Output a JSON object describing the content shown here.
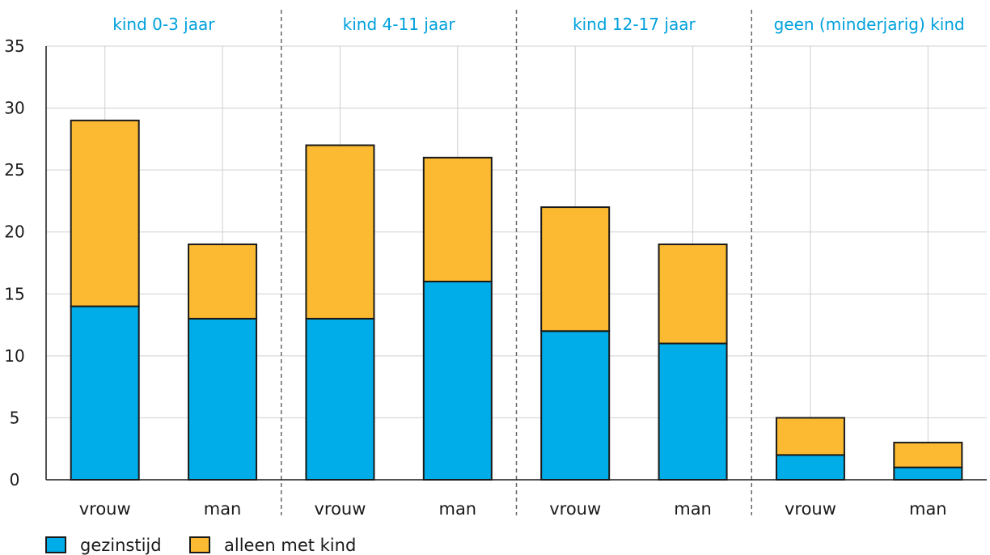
{
  "chart_data": {
    "type": "bar",
    "stacked": true,
    "groups": [
      "kind 0-3 jaar",
      "kind 4-11 jaar",
      "kind 12-17 jaar",
      "geen (minderjarig) kind"
    ],
    "categories": [
      "vrouw",
      "man",
      "vrouw",
      "man",
      "vrouw",
      "man",
      "vrouw",
      "man"
    ],
    "series": [
      {
        "name": "gezinstijd",
        "color": "#00ade8",
        "values": [
          14,
          13,
          13,
          16,
          12,
          11,
          2,
          1
        ]
      },
      {
        "name": "alleen met kind",
        "color": "#fbba31",
        "values": [
          15,
          6,
          14,
          10,
          10,
          8,
          3,
          2
        ]
      }
    ],
    "ylim": [
      0,
      35
    ],
    "yticks": [
      0,
      5,
      10,
      15,
      20,
      25,
      30,
      35
    ],
    "grid": true,
    "legend_position": "bottom-left",
    "group_label_color": "#00a1dc",
    "title": "",
    "xlabel": "",
    "ylabel": ""
  }
}
